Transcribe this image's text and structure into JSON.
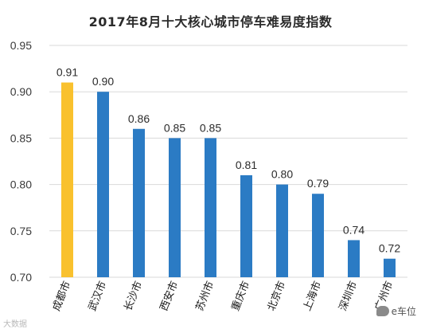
{
  "chart_data": {
    "type": "bar",
    "title": "2017年8月十大核心城市停车难易度指数",
    "categories": [
      "成都市",
      "武汉市",
      "长沙市",
      "西安市",
      "苏州市",
      "重庆市",
      "北京市",
      "上海市",
      "深圳市",
      "广州市"
    ],
    "values": [
      0.91,
      0.9,
      0.86,
      0.85,
      0.85,
      0.81,
      0.8,
      0.79,
      0.74,
      0.72
    ],
    "value_labels": [
      "0.91",
      "0.90",
      "0.86",
      "0.85",
      "0.85",
      "0.81",
      "0.80",
      "0.79",
      "0.74",
      "0.72"
    ],
    "ylim": [
      0.7,
      0.95
    ],
    "yticks": [
      "0.70",
      "0.75",
      "0.80",
      "0.85",
      "0.90",
      "0.95"
    ],
    "xlabel": "",
    "ylabel": "",
    "grid": true,
    "legend": "none",
    "colors": {
      "highlight": "#F9C12E",
      "bar": "#2B7BC4",
      "grid": "#D9D9D9"
    },
    "highlight_index": 0
  },
  "watermarks": {
    "left": "大数据",
    "right": "e车位"
  }
}
